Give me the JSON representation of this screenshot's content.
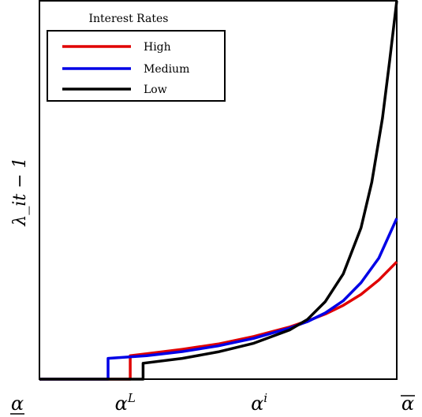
{
  "chart_data": {
    "type": "line",
    "title": "",
    "xlabel": "",
    "ylabel": "λ_it − 1",
    "x_ticks": [
      {
        "x": 0.0,
        "base": "α",
        "sup": "",
        "over": false,
        "under": true
      },
      {
        "x": 0.24,
        "base": "α",
        "sup": "L",
        "over": false,
        "under": false
      },
      {
        "x": 0.615,
        "base": "α",
        "sup": "i",
        "over": false,
        "under": false
      },
      {
        "x": 1.0,
        "base": "α",
        "sup": "",
        "over": true,
        "under": false
      }
    ],
    "xlim": [
      0,
      1
    ],
    "ylim": [
      0,
      1
    ],
    "legend": {
      "title": "Interest Rates",
      "placement": "top-left",
      "entries": [
        "High",
        "Medium",
        "Low"
      ]
    },
    "series": [
      {
        "name": "High",
        "color": "#e00000",
        "x": [
          0.0,
          0.254,
          0.254,
          0.3,
          0.4,
          0.5,
          0.6,
          0.7,
          0.75,
          0.8,
          0.85,
          0.9,
          0.95,
          1.0
        ],
        "y": [
          0.0,
          0.0,
          0.062,
          0.067,
          0.079,
          0.093,
          0.113,
          0.138,
          0.154,
          0.172,
          0.195,
          0.224,
          0.262,
          0.31
        ]
      },
      {
        "name": "Medium",
        "color": "#0000e6",
        "x": [
          0.0,
          0.192,
          0.192,
          0.3,
          0.4,
          0.5,
          0.6,
          0.7,
          0.75,
          0.8,
          0.85,
          0.9,
          0.95,
          1.0
        ],
        "y": [
          0.0,
          0.0,
          0.055,
          0.062,
          0.073,
          0.088,
          0.108,
          0.135,
          0.152,
          0.175,
          0.207,
          0.255,
          0.32,
          0.425
        ]
      },
      {
        "name": "Low",
        "color": "#000000",
        "x": [
          0.0,
          0.29,
          0.29,
          0.4,
          0.5,
          0.6,
          0.7,
          0.75,
          0.8,
          0.85,
          0.9,
          0.93,
          0.96,
          0.98,
          1.0
        ],
        "y": [
          0.0,
          0.0,
          0.042,
          0.055,
          0.072,
          0.095,
          0.13,
          0.158,
          0.205,
          0.278,
          0.4,
          0.52,
          0.69,
          0.84,
          1.0
        ]
      }
    ]
  }
}
